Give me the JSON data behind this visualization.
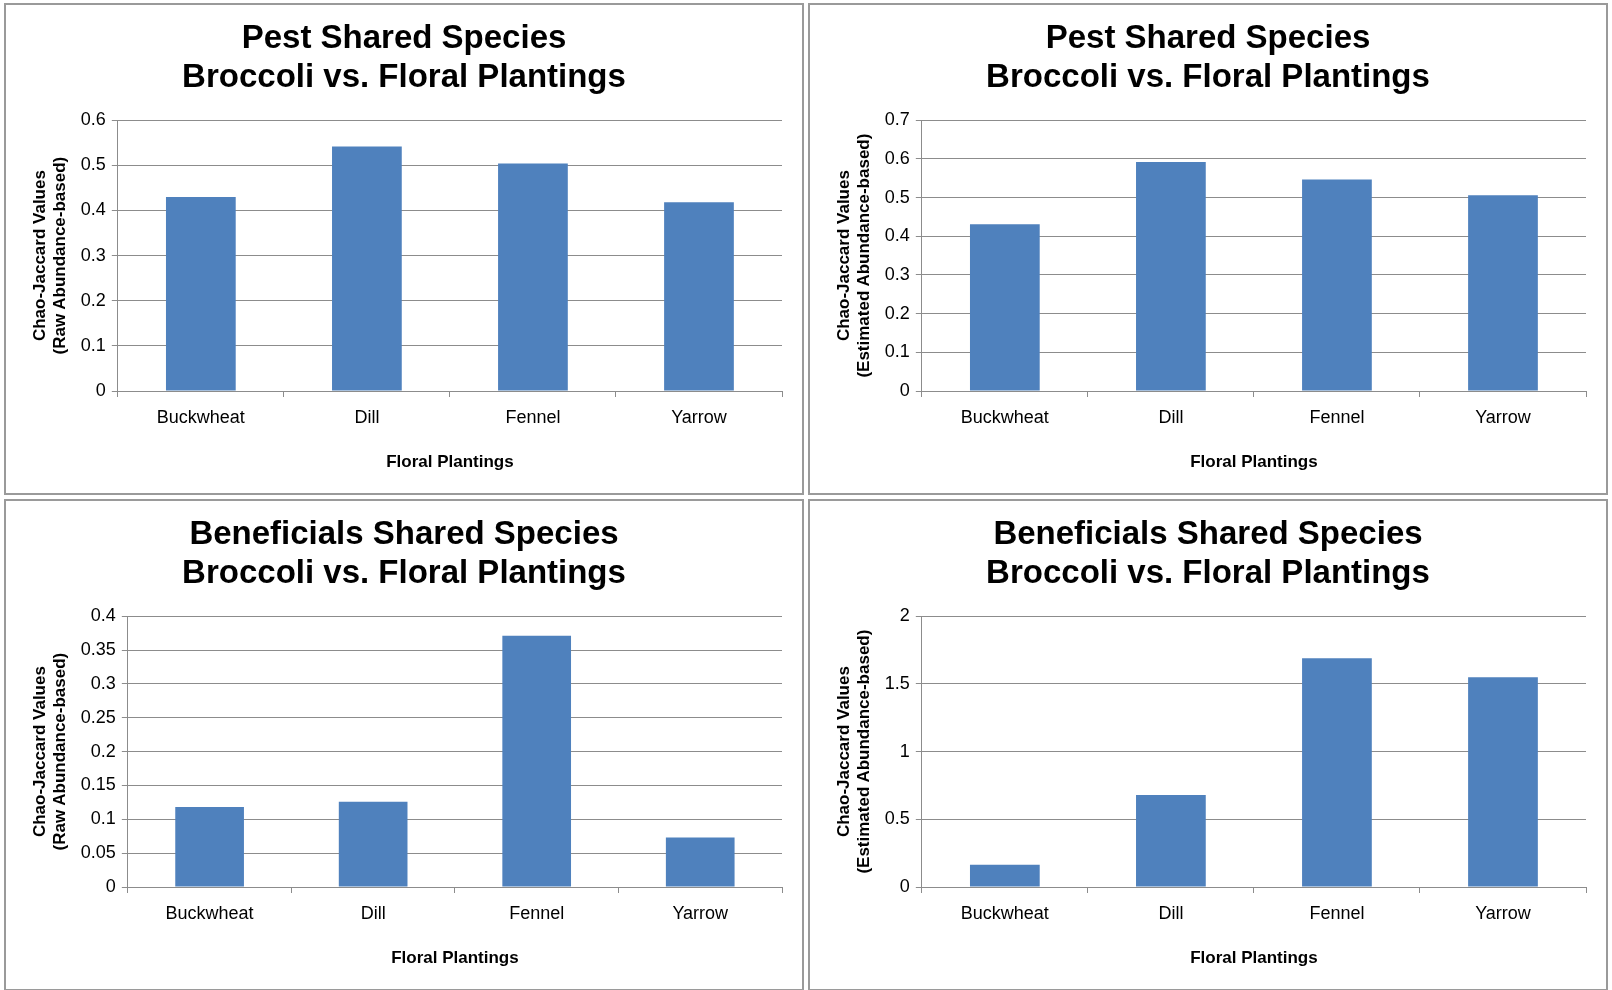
{
  "chart_data": [
    {
      "type": "bar",
      "title": "Pest Shared Species\nBroccoli vs. Floral Plantings",
      "xlabel": "Floral Plantings",
      "ylabel": "Chao-Jaccard Values\n(Raw Abundance-based)",
      "categories": [
        "Buckwheat",
        "Dill",
        "Fennel",
        "Yarrow"
      ],
      "values": [
        0.43,
        0.542,
        0.504,
        0.418
      ],
      "color": "#4f81bd",
      "ylim": [
        0,
        0.6
      ],
      "yticks": [
        0,
        0.1,
        0.2,
        0.3,
        0.4,
        0.5,
        0.6
      ],
      "grid": "y",
      "legend": false
    },
    {
      "type": "bar",
      "title": "Pest Shared Species\nBroccoli vs. Floral Plantings",
      "xlabel": "Floral Plantings",
      "ylabel": "Chao-Jaccard Values\n(Estimated Abundance-based)",
      "categories": [
        "Buckwheat",
        "Dill",
        "Fennel",
        "Yarrow"
      ],
      "values": [
        0.431,
        0.592,
        0.547,
        0.506
      ],
      "color": "#4f81bd",
      "ylim": [
        0,
        0.7
      ],
      "yticks": [
        0,
        0.1,
        0.2,
        0.3,
        0.4,
        0.5,
        0.6,
        0.7
      ],
      "grid": "y",
      "legend": false
    },
    {
      "type": "bar",
      "title": "Beneficials Shared Species\nBroccoli vs. Floral Plantings",
      "xlabel": "Floral Plantings",
      "ylabel": "Chao-Jaccard Values\n(Raw Abundance-based)",
      "categories": [
        "Buckwheat",
        "Dill",
        "Fennel",
        "Yarrow"
      ],
      "values": [
        0.118,
        0.126,
        0.371,
        0.073
      ],
      "color": "#4f81bd",
      "ylim": [
        0,
        0.4
      ],
      "yticks": [
        0,
        0.05,
        0.1,
        0.15,
        0.2,
        0.25,
        0.3,
        0.35,
        0.4
      ],
      "grid": "y",
      "legend": false
    },
    {
      "type": "bar",
      "title": "Beneficials Shared Species\nBroccoli vs. Floral Plantings",
      "xlabel": "Floral Plantings",
      "ylabel": "Chao-Jaccard Values\n(Estimated Abundance-based)",
      "categories": [
        "Buckwheat",
        "Dill",
        "Fennel",
        "Yarrow"
      ],
      "values": [
        0.165,
        0.68,
        1.69,
        1.55
      ],
      "color": "#4f81bd",
      "ylim": [
        0,
        2
      ],
      "yticks": [
        0,
        0.5,
        1,
        1.5,
        2
      ],
      "grid": "y",
      "legend": false
    }
  ]
}
